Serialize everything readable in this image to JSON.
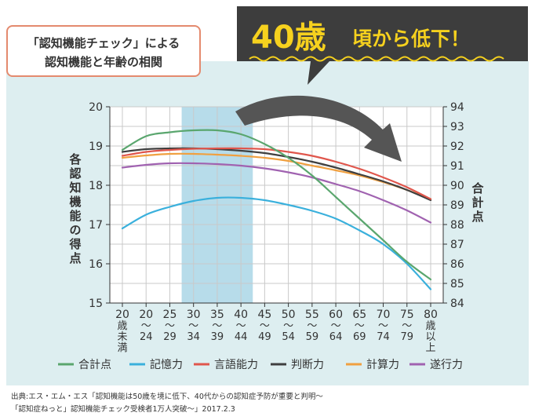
{
  "chart_data": {
    "type": "line",
    "title": "「認知機能チェック」による認知機能と年齢の相関",
    "title_lines": [
      "「認知機能チェック」による",
      "認知機能と年齢の相関"
    ],
    "banner": {
      "big": "40歳",
      "small": "頃から低下！"
    },
    "ylabel": "各認知機能の得点",
    "y2label": "合計点",
    "ylim": [
      15,
      20
    ],
    "y2lim": [
      84,
      94
    ],
    "yticks": [
      "15",
      "16",
      "17",
      "18",
      "19",
      "20"
    ],
    "y2ticks": [
      "84",
      "85",
      "86",
      "87",
      "88",
      "89",
      "90",
      "91",
      "92",
      "93",
      "94"
    ],
    "categories": [
      [
        "20",
        "歳",
        "未",
        "満"
      ],
      [
        "20",
        "〜",
        "24"
      ],
      [
        "25",
        "〜",
        "29"
      ],
      [
        "30",
        "〜",
        "34"
      ],
      [
        "35",
        "〜",
        "39"
      ],
      [
        "40",
        "〜",
        "44"
      ],
      [
        "45",
        "〜",
        "49"
      ],
      [
        "50",
        "〜",
        "54"
      ],
      [
        "55",
        "〜",
        "59"
      ],
      [
        "60",
        "〜",
        "64"
      ],
      [
        "65",
        "〜",
        "69"
      ],
      [
        "70",
        "〜",
        "74"
      ],
      [
        "75",
        "〜",
        "79"
      ],
      [
        "80",
        "歳",
        "以",
        "上"
      ]
    ],
    "highlight_range": [
      3,
      6
    ],
    "series": [
      {
        "name": "合計点",
        "axis": "right",
        "color": "#5aa66e",
        "values": [
          91.8,
          92.5,
          92.7,
          92.8,
          92.8,
          92.6,
          92.1,
          91.4,
          90.5,
          89.4,
          88.3,
          87.2,
          86.1,
          85.2
        ]
      },
      {
        "name": "記憶力",
        "axis": "left",
        "color": "#3ab0dc",
        "values": [
          16.9,
          17.25,
          17.45,
          17.6,
          17.68,
          17.68,
          17.62,
          17.5,
          17.35,
          17.15,
          16.85,
          16.5,
          16.0,
          15.35
        ]
      },
      {
        "name": "言語能力",
        "axis": "left",
        "color": "#e0564c",
        "values": [
          18.75,
          18.85,
          18.9,
          18.93,
          18.94,
          18.94,
          18.92,
          18.85,
          18.75,
          18.6,
          18.42,
          18.2,
          17.95,
          17.65
        ]
      },
      {
        "name": "判断力",
        "axis": "left",
        "color": "#3f3f3f",
        "values": [
          18.85,
          18.92,
          18.94,
          18.94,
          18.92,
          18.88,
          18.82,
          18.72,
          18.6,
          18.45,
          18.28,
          18.1,
          17.88,
          17.62
        ]
      },
      {
        "name": "計算力",
        "axis": "left",
        "color": "#f0a040",
        "values": [
          18.7,
          18.76,
          18.8,
          18.8,
          18.78,
          18.75,
          18.7,
          18.62,
          18.5,
          18.38,
          18.25,
          18.08,
          17.88,
          17.65
        ]
      },
      {
        "name": "遂行力",
        "axis": "left",
        "color": "#a062b0",
        "values": [
          18.45,
          18.52,
          18.56,
          18.56,
          18.54,
          18.5,
          18.43,
          18.33,
          18.2,
          18.03,
          17.85,
          17.62,
          17.36,
          17.05
        ]
      }
    ],
    "source": [
      "出典:エス・エム・エス「認知機能は50歳を境に低下、40代からの認知症予防が重要と判明～",
      "「認知症ねっと」認知機能チェック受検者1万人突破～」2017.2.3"
    ],
    "colors": {
      "panel": "#ddeef0",
      "highlight": "#b7dcea",
      "banner_bg": "#3d3d3d",
      "banner_text": "#f6d11e",
      "title_border": "#e48a6e"
    }
  }
}
